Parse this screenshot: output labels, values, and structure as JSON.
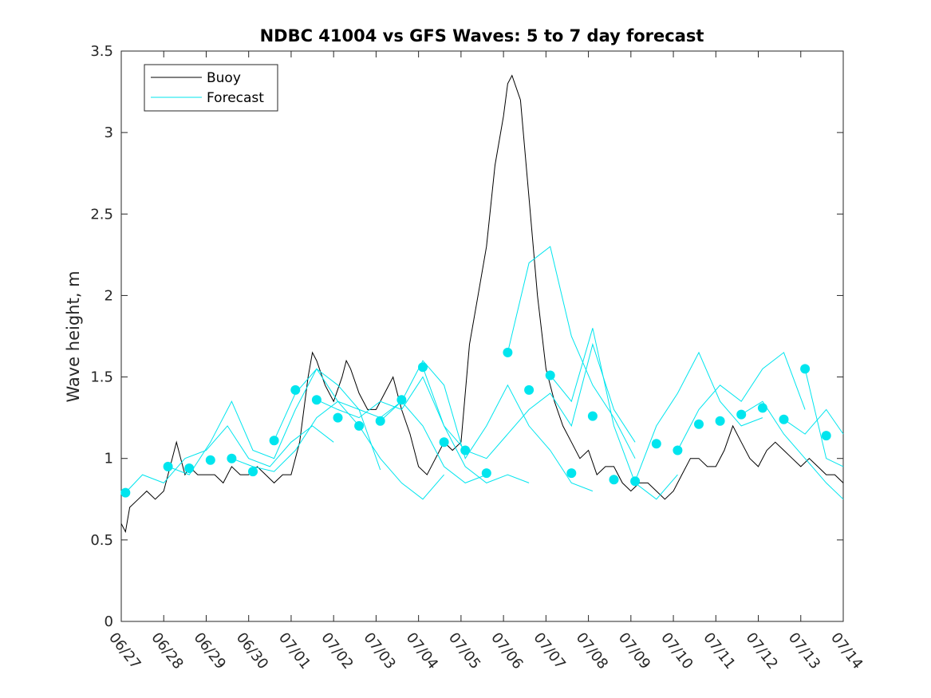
{
  "chart_data": {
    "type": "line",
    "title": "NDBC 41004 vs GFS Waves: 5 to 7 day forecast",
    "xlabel": "",
    "ylabel": "Wave height, m",
    "xlim": [
      "06/27",
      "07/14"
    ],
    "ylim": [
      0,
      3.5
    ],
    "grid": false,
    "legend_position": "top-left",
    "x_tick_labels": [
      "06/27",
      "06/28",
      "06/29",
      "06/30",
      "07/01",
      "07/02",
      "07/03",
      "07/04",
      "07/05",
      "07/06",
      "07/07",
      "07/08",
      "07/09",
      "07/10",
      "07/11",
      "07/12",
      "07/13",
      "07/14"
    ],
    "y_tick_labels": [
      "0",
      "0.5",
      "1",
      "1.5",
      "2",
      "2.5",
      "3",
      "3.5"
    ],
    "y_ticks": [
      0,
      0.5,
      1,
      1.5,
      2,
      2.5,
      3,
      3.5
    ],
    "colors": {
      "buoy": "#000000",
      "forecast": "#00e5ee"
    },
    "legend": [
      {
        "label": "Buoy",
        "color": "#000000"
      },
      {
        "label": "Forecast",
        "color": "#00e5ee"
      }
    ],
    "series": [
      {
        "name": "Buoy",
        "x": [
          0,
          0.1,
          0.2,
          0.4,
          0.6,
          0.8,
          1.0,
          1.1,
          1.2,
          1.3,
          1.4,
          1.5,
          1.6,
          1.8,
          2.0,
          2.2,
          2.4,
          2.6,
          2.8,
          3.0,
          3.2,
          3.4,
          3.6,
          3.8,
          4.0,
          4.2,
          4.3,
          4.4,
          4.5,
          4.6,
          4.8,
          5.0,
          5.2,
          5.3,
          5.4,
          5.6,
          5.8,
          6.0,
          6.2,
          6.4,
          6.6,
          6.8,
          7.0,
          7.2,
          7.4,
          7.6,
          7.8,
          8.0,
          8.2,
          8.4,
          8.6,
          8.8,
          9.0,
          9.1,
          9.2,
          9.4,
          9.6,
          9.8,
          10.0,
          10.2,
          10.4,
          10.6,
          10.8,
          11.0,
          11.2,
          11.4,
          11.6,
          11.8,
          12.0,
          12.2,
          12.4,
          12.6,
          12.8,
          13.0,
          13.2,
          13.4,
          13.6,
          13.8,
          14.0,
          14.2,
          14.4,
          14.6,
          14.8,
          15.0,
          15.2,
          15.4,
          15.6,
          15.8,
          16.0,
          16.2,
          16.4,
          16.6,
          16.8,
          17.0
        ],
        "values": [
          0.6,
          0.55,
          0.7,
          0.75,
          0.8,
          0.75,
          0.8,
          0.9,
          1.0,
          1.1,
          1.0,
          0.9,
          0.95,
          0.9,
          0.9,
          0.9,
          0.85,
          0.95,
          0.9,
          0.9,
          0.95,
          0.9,
          0.85,
          0.9,
          0.9,
          1.1,
          1.3,
          1.5,
          1.65,
          1.6,
          1.45,
          1.35,
          1.5,
          1.6,
          1.55,
          1.4,
          1.3,
          1.3,
          1.4,
          1.5,
          1.3,
          1.15,
          0.95,
          0.9,
          1.0,
          1.1,
          1.05,
          1.1,
          1.7,
          2.0,
          2.3,
          2.8,
          3.1,
          3.3,
          3.35,
          3.2,
          2.6,
          2.0,
          1.55,
          1.35,
          1.2,
          1.1,
          1.0,
          1.05,
          0.9,
          0.95,
          0.95,
          0.85,
          0.8,
          0.85,
          0.85,
          0.8,
          0.75,
          0.8,
          0.9,
          1.0,
          1.0,
          0.95,
          0.95,
          1.05,
          1.2,
          1.1,
          1.0,
          0.95,
          1.05,
          1.1,
          1.05,
          1.0,
          0.95,
          1.0,
          0.95,
          0.9,
          0.9,
          0.85
        ]
      },
      {
        "name": "Forecast",
        "dots_x": [
          0.1,
          1.1,
          1.6,
          2.1,
          2.6,
          3.1,
          3.6,
          4.1,
          4.6,
          5.1,
          5.6,
          6.1,
          6.6,
          7.1,
          7.6,
          8.1,
          8.6,
          9.1,
          9.6,
          10.1,
          10.6,
          11.1,
          11.6,
          12.1,
          12.6,
          13.1,
          13.6,
          14.1,
          14.6,
          15.1,
          15.6,
          16.1,
          16.6
        ],
        "dots_values": [
          0.79,
          0.95,
          0.94,
          0.99,
          1.0,
          0.92,
          1.11,
          1.42,
          1.36,
          1.25,
          1.2,
          1.23,
          1.36,
          1.56,
          1.1,
          1.05,
          0.91,
          1.65,
          1.42,
          1.51,
          0.91,
          1.26,
          0.87,
          0.86,
          1.09,
          1.05,
          1.21,
          1.23,
          1.27,
          1.31,
          1.24,
          1.55,
          1.14
        ],
        "traces": [
          {
            "x": [
              0.1,
              0.5,
              1.0,
              1.5,
              2.0,
              2.5,
              3.0,
              3.5,
              4.0,
              4.5,
              5.0
            ],
            "values": [
              0.79,
              0.9,
              0.85,
              1.0,
              1.05,
              1.2,
              1.0,
              0.95,
              1.1,
              1.2,
              1.1
            ]
          },
          {
            "x": [
              1.1,
              1.6,
              2.1,
              2.6,
              3.1,
              3.6,
              4.1,
              4.6,
              5.1,
              5.6,
              6.1
            ],
            "values": [
              0.95,
              0.9,
              1.1,
              1.35,
              1.05,
              1.0,
              1.3,
              1.55,
              1.35,
              1.3,
              0.93
            ]
          },
          {
            "x": [
              2.6,
              3.1,
              3.6,
              4.1,
              4.6,
              5.1,
              5.6,
              6.1,
              6.6,
              7.1,
              7.6
            ],
            "values": [
              1.0,
              0.95,
              0.92,
              1.05,
              1.25,
              1.35,
              1.2,
              1.0,
              0.85,
              0.75,
              0.9
            ]
          },
          {
            "x": [
              3.6,
              4.1,
              4.6,
              5.1,
              5.6,
              6.1,
              6.6,
              7.1,
              7.6,
              8.1,
              8.6
            ],
            "values": [
              1.11,
              1.4,
              1.55,
              1.45,
              1.3,
              1.25,
              1.35,
              1.2,
              0.95,
              0.85,
              0.9
            ]
          },
          {
            "x": [
              4.6,
              5.1,
              5.6,
              6.1,
              6.6,
              7.1,
              7.6,
              8.1,
              8.6,
              9.1,
              9.6
            ],
            "values": [
              1.36,
              1.3,
              1.25,
              1.35,
              1.3,
              1.5,
              1.2,
              0.95,
              0.85,
              0.9,
              0.85
            ]
          },
          {
            "x": [
              6.1,
              6.6,
              7.1,
              7.6,
              8.1,
              8.6,
              9.1,
              9.6,
              10.1,
              10.6,
              11.1
            ],
            "values": [
              1.23,
              1.35,
              1.6,
              1.45,
              1.0,
              1.2,
              1.45,
              1.2,
              1.05,
              0.85,
              0.8
            ]
          },
          {
            "x": [
              7.1,
              7.6,
              8.1,
              8.6,
              9.1,
              9.6,
              10.1,
              10.6,
              11.1,
              11.6,
              12.1
            ],
            "values": [
              1.56,
              1.2,
              1.05,
              1.0,
              1.15,
              1.3,
              1.4,
              1.2,
              1.7,
              1.3,
              1.1
            ]
          },
          {
            "x": [
              9.1,
              9.6,
              10.1,
              10.6,
              11.1,
              11.6,
              12.1
            ],
            "values": [
              1.65,
              2.2,
              2.3,
              1.75,
              1.45,
              1.25,
              1.0
            ]
          },
          {
            "x": [
              10.1,
              10.6,
              11.1,
              11.6,
              12.1,
              12.6,
              13.1
            ],
            "values": [
              1.51,
              1.35,
              1.8,
              1.2,
              0.85,
              0.75,
              0.9
            ]
          },
          {
            "x": [
              12.1,
              12.6,
              13.1,
              13.6,
              14.1,
              14.6,
              15.1
            ],
            "values": [
              0.86,
              1.2,
              1.4,
              1.65,
              1.35,
              1.2,
              1.25
            ]
          },
          {
            "x": [
              13.1,
              13.6,
              14.1,
              14.6,
              15.1,
              15.6,
              16.1
            ],
            "values": [
              1.05,
              1.3,
              1.45,
              1.35,
              1.55,
              1.65,
              1.3
            ]
          },
          {
            "x": [
              14.6,
              15.1,
              15.6,
              16.1,
              16.6,
              17.0
            ],
            "values": [
              1.27,
              1.35,
              1.15,
              1.0,
              0.85,
              0.75
            ]
          },
          {
            "x": [
              15.6,
              16.1,
              16.6,
              17.0
            ],
            "values": [
              1.24,
              1.15,
              1.3,
              1.15
            ]
          },
          {
            "x": [
              16.1,
              16.6,
              17.0
            ],
            "values": [
              1.55,
              1.0,
              0.95
            ]
          }
        ]
      }
    ]
  }
}
